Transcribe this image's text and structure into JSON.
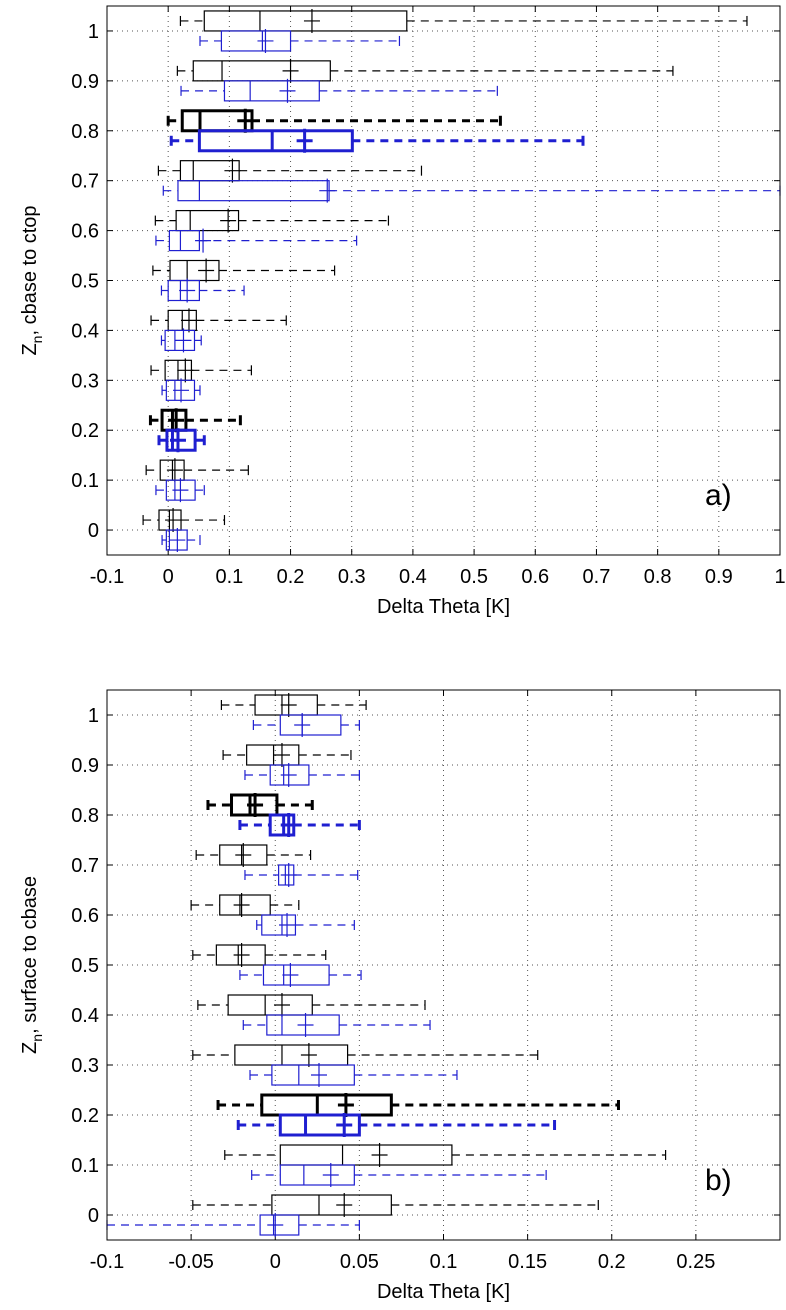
{
  "chart_data": [
    {
      "type": "box",
      "ylabel": [
        "Z",
        "n",
        ", cbase to ctop"
      ],
      "xlabel": "Delta Theta [K]",
      "annotation": "a)",
      "xlim": [
        -0.1,
        1
      ],
      "xticks": [
        -0.1,
        0,
        0.1,
        0.2,
        0.3,
        0.4,
        0.5,
        0.6,
        0.7,
        0.8,
        0.9,
        1
      ],
      "ylim": [
        -0.05,
        1.05
      ],
      "yticks": [
        0,
        0.1,
        0.2,
        0.3,
        0.4,
        0.5,
        0.6,
        0.7,
        0.8,
        0.9,
        1
      ],
      "grid": true,
      "positions": [
        0,
        0.1,
        0.2,
        0.3,
        0.4,
        0.5,
        0.6,
        0.7,
        0.8,
        0.9,
        1
      ],
      "bold": [
        false,
        false,
        true,
        false,
        false,
        false,
        false,
        false,
        true,
        false,
        false
      ],
      "series": [
        {
          "color": "#000000",
          "whislo": [
            -0.041,
            -0.036,
            -0.029,
            -0.028,
            -0.028,
            -0.025,
            -0.021,
            -0.016,
            0.0,
            0.015,
            0.02
          ],
          "q1": [
            -0.015,
            -0.013,
            -0.01,
            -0.005,
            0.0,
            0.003,
            0.013,
            0.02,
            0.023,
            0.041,
            0.059
          ],
          "median": [
            0.002,
            0.007,
            0.007,
            0.016,
            0.023,
            0.031,
            0.036,
            0.041,
            0.052,
            0.088,
            0.15
          ],
          "q3": [
            0.021,
            0.026,
            0.029,
            0.038,
            0.046,
            0.083,
            0.115,
            0.116,
            0.137,
            0.265,
            0.39
          ],
          "whishi": [
            0.092,
            0.131,
            0.118,
            0.136,
            0.193,
            0.272,
            0.36,
            0.414,
            0.543,
            0.825,
            0.946
          ],
          "mean": [
            0.008,
            0.011,
            0.013,
            0.028,
            0.034,
            0.062,
            0.098,
            0.105,
            0.126,
            0.2,
            0.235
          ]
        },
        {
          "color": "#1f1fd0",
          "whislo": [
            -0.01,
            -0.02,
            -0.015,
            -0.01,
            -0.011,
            -0.011,
            -0.02,
            -0.008,
            0.005,
            0.021,
            0.052
          ],
          "q1": [
            -0.003,
            -0.003,
            -0.002,
            -0.003,
            -0.005,
            0.0,
            0.002,
            0.016,
            0.051,
            0.092,
            0.087
          ],
          "median": [
            0.002,
            0.011,
            0.007,
            0.011,
            0.011,
            0.02,
            0.02,
            0.051,
            0.17,
            0.134,
            0.154
          ],
          "q3": [
            0.031,
            0.044,
            0.044,
            0.043,
            0.043,
            0.051,
            0.051,
            0.263,
            0.301,
            0.247,
            0.2
          ],
          "whishi": [
            0.052,
            0.059,
            0.059,
            0.052,
            0.054,
            0.124,
            0.308,
            1.0,
            0.678,
            0.538,
            0.378
          ],
          "mean": [
            0.015,
            0.02,
            0.016,
            0.021,
            0.025,
            0.031,
            0.057,
            0.26,
            0.223,
            0.195,
            0.159
          ]
        }
      ]
    },
    {
      "type": "box",
      "ylabel": [
        "Z",
        "n",
        ", surface to cbase"
      ],
      "xlabel": "Delta Theta [K]",
      "annotation": "b)",
      "xlim": [
        -0.1,
        0.3
      ],
      "xticks": [
        -0.1,
        -0.05,
        0,
        0.05,
        0.1,
        0.15,
        0.2,
        0.25
      ],
      "ylim": [
        -0.05,
        1.05
      ],
      "yticks": [
        0,
        0.1,
        0.2,
        0.3,
        0.4,
        0.5,
        0.6,
        0.7,
        0.8,
        0.9,
        1
      ],
      "grid": true,
      "positions": [
        0,
        0.1,
        0.2,
        0.3,
        0.4,
        0.5,
        0.6,
        0.7,
        0.8,
        0.9,
        1
      ],
      "bold": [
        false,
        false,
        true,
        false,
        false,
        false,
        false,
        false,
        true,
        false,
        false
      ],
      "series": [
        {
          "color": "#000000",
          "whislo": [
            -0.049,
            -0.03,
            -0.034,
            -0.049,
            -0.046,
            -0.049,
            -0.05,
            -0.047,
            -0.04,
            -0.031,
            -0.032
          ],
          "q1": [
            -0.002,
            0.003,
            -0.008,
            -0.024,
            -0.028,
            -0.035,
            -0.033,
            -0.033,
            -0.026,
            -0.017,
            -0.012
          ],
          "median": [
            0.026,
            0.04,
            0.025,
            0.004,
            -0.006,
            -0.022,
            -0.021,
            -0.02,
            -0.015,
            -0.001,
            0.004
          ],
          "q3": [
            0.069,
            0.105,
            0.069,
            0.043,
            0.022,
            -0.006,
            -0.003,
            -0.005,
            0.001,
            0.014,
            0.025
          ],
          "whishi": [
            0.192,
            0.232,
            0.204,
            0.156,
            0.089,
            0.03,
            0.014,
            0.021,
            0.022,
            0.045,
            0.054
          ],
          "mean": [
            0.041,
            0.062,
            0.042,
            0.02,
            0.004,
            -0.02,
            -0.02,
            -0.019,
            -0.012,
            0.004,
            0.008
          ]
        },
        {
          "color": "#1f1fd0",
          "whislo": [
            -0.1,
            -0.014,
            -0.022,
            -0.015,
            -0.019,
            -0.021,
            -0.011,
            -0.018,
            -0.021,
            -0.018,
            -0.013
          ],
          "q1": [
            -0.009,
            0.003,
            0.003,
            -0.002,
            -0.005,
            -0.007,
            -0.008,
            0.002,
            -0.003,
            -0.003,
            0.003
          ],
          "median": [
            -0.001,
            0.017,
            0.018,
            0.014,
            0.004,
            0.005,
            0.004,
            0.006,
            0.005,
            0.005,
            0.016
          ],
          "q3": [
            0.014,
            0.047,
            0.05,
            0.047,
            0.038,
            0.032,
            0.012,
            0.011,
            0.011,
            0.02,
            0.039
          ],
          "whishi": [
            0.05,
            0.161,
            0.166,
            0.108,
            0.092,
            0.051,
            0.047,
            0.049,
            0.05,
            0.05,
            0.05
          ],
          "mean": [
            0.0,
            0.033,
            0.041,
            0.026,
            0.018,
            0.009,
            0.007,
            0.008,
            0.008,
            0.008,
            0.016
          ]
        }
      ]
    }
  ]
}
